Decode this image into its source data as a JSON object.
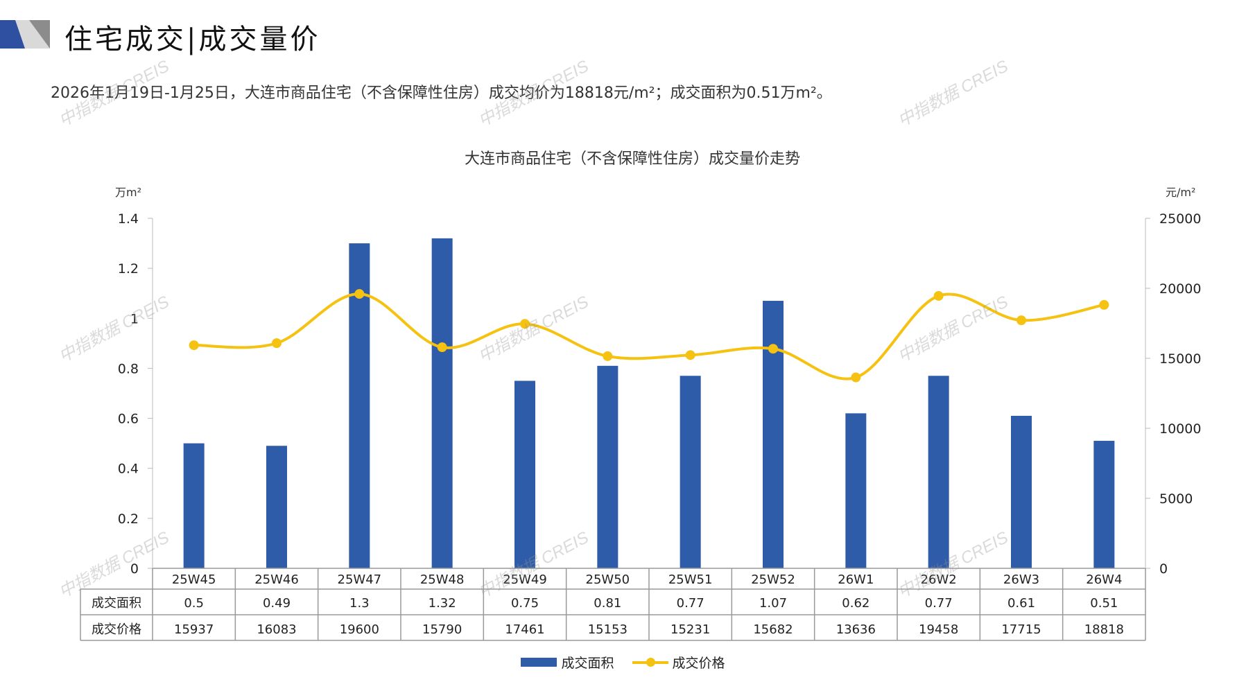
{
  "header": {
    "title": "住宅成交|成交量价"
  },
  "summary": "2026年1月19日-1月25日，大连市商品住宅（不含保障性住房）成交均价为18818元/m²；成交面积为0.51万m²。",
  "watermark": "中指数据 CREIS",
  "colors": {
    "bar": "#2f5ca8",
    "line": "#f5c211",
    "accent": "#2f4fa0"
  },
  "chart_data": {
    "type": "bar+line",
    "title": "大连市商品住宅（不含保障性住房）成交量价走势",
    "ylabel_left": "万m²",
    "ylabel_right": "元/m²",
    "ylim_left": [
      0,
      1.4
    ],
    "ylim_right": [
      0,
      25000
    ],
    "yticks_left": [
      "0",
      "0.2",
      "0.4",
      "0.6",
      "0.8",
      "1",
      "1.2",
      "1.4"
    ],
    "yticks_right": [
      "0",
      "5000",
      "10000",
      "15000",
      "20000",
      "25000"
    ],
    "categories": [
      "25W45",
      "25W46",
      "25W47",
      "25W48",
      "25W49",
      "25W50",
      "25W51",
      "25W52",
      "26W1",
      "26W2",
      "26W3",
      "26W4"
    ],
    "series": [
      {
        "name": "成交面积",
        "type": "bar",
        "axis": "left",
        "values": [
          0.5,
          0.49,
          1.3,
          1.32,
          0.75,
          0.81,
          0.77,
          1.07,
          0.62,
          0.77,
          0.61,
          0.51
        ],
        "labels": [
          "0.5",
          "0.49",
          "1.3",
          "1.32",
          "0.75",
          "0.81",
          "0.77",
          "1.07",
          "0.62",
          "0.77",
          "0.61",
          "0.51"
        ]
      },
      {
        "name": "成交价格",
        "type": "line",
        "axis": "right",
        "values": [
          15937,
          16083,
          19600,
          15790,
          17461,
          15153,
          15231,
          15682,
          13636,
          19458,
          17715,
          18818
        ],
        "labels": [
          "15937",
          "16083",
          "19600",
          "15790",
          "17461",
          "15153",
          "15231",
          "15682",
          "13636",
          "19458",
          "17715",
          "18818"
        ]
      }
    ],
    "legend": "bottom",
    "data_table": true
  }
}
